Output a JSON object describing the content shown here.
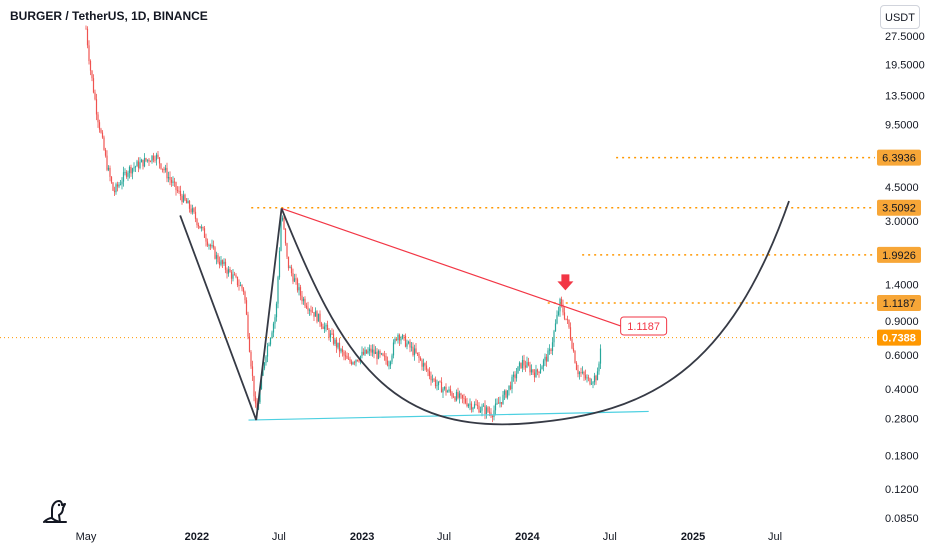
{
  "header": {
    "symbol_title": "BURGER / TetherUS, 1D, BINANCE",
    "currency_label": "USDT"
  },
  "icons": {
    "logo": "tradingview-logo-icon",
    "arrow": "down-arrow-icon"
  },
  "colors": {
    "up": "#26a69a",
    "down": "#ef5350",
    "level": "#ff9800",
    "trendline": "#f23645",
    "cup": "#363a45",
    "support": "#4dd0e1",
    "label_bg": "#f7a637",
    "current_bg": "#ff9800"
  },
  "chart_data": {
    "type": "candlestick",
    "title": "BURGER / TetherUS, 1D, BINANCE",
    "xlabel": "",
    "ylabel": "",
    "y_scale": "log",
    "ylim": [
      0.08,
      31
    ],
    "y_ticks": [
      "27.5000",
      "19.5000",
      "13.5000",
      "9.5000",
      "4.5000",
      "3.0000",
      "1.4000",
      "0.9000",
      "0.6000",
      "0.4000",
      "0.2800",
      "0.1800",
      "0.1200",
      "0.0850"
    ],
    "x_ticks": [
      "May",
      "2022",
      "Jul",
      "2023",
      "Jul",
      "2024",
      "Jul",
      "2025",
      "Jul"
    ],
    "price_path": [
      [
        "2021-05-01",
        30.0
      ],
      [
        "2021-05-10",
        19.0
      ],
      [
        "2021-05-25",
        11.0
      ],
      [
        "2021-06-15",
        6.0
      ],
      [
        "2021-07-01",
        4.2
      ],
      [
        "2021-08-01",
        5.5
      ],
      [
        "2021-09-01",
        6.0
      ],
      [
        "2021-10-01",
        6.6
      ],
      [
        "2021-11-15",
        4.4
      ],
      [
        "2021-12-20",
        3.4
      ],
      [
        "2022-01-15",
        2.6
      ],
      [
        "2022-02-15",
        1.9
      ],
      [
        "2022-03-15",
        1.6
      ],
      [
        "2022-04-15",
        1.3
      ],
      [
        "2022-05-12",
        0.29
      ],
      [
        "2022-06-01",
        0.6
      ],
      [
        "2022-06-25",
        1.0
      ],
      [
        "2022-07-07",
        3.45
      ],
      [
        "2022-07-20",
        1.8
      ],
      [
        "2022-08-20",
        1.2
      ],
      [
        "2022-10-01",
        0.9
      ],
      [
        "2022-12-01",
        0.55
      ],
      [
        "2023-01-20",
        0.63
      ],
      [
        "2023-03-01",
        0.55
      ],
      [
        "2023-03-20",
        0.78
      ],
      [
        "2023-05-01",
        0.6
      ],
      [
        "2023-06-15",
        0.42
      ],
      [
        "2023-08-01",
        0.36
      ],
      [
        "2023-09-01",
        0.33
      ],
      [
        "2023-10-15",
        0.3
      ],
      [
        "2023-11-15",
        0.38
      ],
      [
        "2023-12-20",
        0.55
      ],
      [
        "2024-01-20",
        0.48
      ],
      [
        "2024-02-20",
        0.62
      ],
      [
        "2024-03-13",
        1.12
      ],
      [
        "2024-04-01",
        0.85
      ],
      [
        "2024-04-20",
        0.5
      ],
      [
        "2024-05-15",
        0.44
      ],
      [
        "2024-06-05",
        0.47
      ],
      [
        "2024-06-12",
        0.74
      ]
    ],
    "current_price": {
      "value": 0.7388,
      "label": "0.7388"
    },
    "horizontal_levels": [
      {
        "value": 6.3936,
        "label": "6.3936",
        "from": "2024-07-15"
      },
      {
        "value": 3.5092,
        "label": "3.5092",
        "from": "2022-05-01"
      },
      {
        "value": 1.9926,
        "label": "1.9926",
        "from": "2024-05-01"
      },
      {
        "value": 1.1187,
        "label": "1.1187",
        "from": "2024-02-15"
      }
    ],
    "annotations": [
      {
        "type": "trendline",
        "from": [
          "2022-07-07",
          3.48
        ],
        "to": [
          "2024-07-25",
          0.85
        ],
        "label": "1.1187"
      },
      {
        "type": "support_line",
        "from": [
          "2022-04-25",
          0.275
        ],
        "to": [
          "2024-09-25",
          0.305
        ]
      },
      {
        "type": "zigzag",
        "points": [
          [
            "2021-11-25",
            3.2
          ],
          [
            "2022-05-12",
            0.275
          ],
          [
            "2022-07-07",
            3.48
          ]
        ]
      },
      {
        "type": "cup_curve",
        "from": [
          "2022-07-07",
          3.48
        ],
        "bottom": [
          "2024-01-05",
          0.265
        ],
        "to": [
          "2025-08-01",
          3.8
        ]
      },
      {
        "type": "arrow_down",
        "at": [
          "2024-03-25",
          1.4
        ]
      }
    ]
  }
}
